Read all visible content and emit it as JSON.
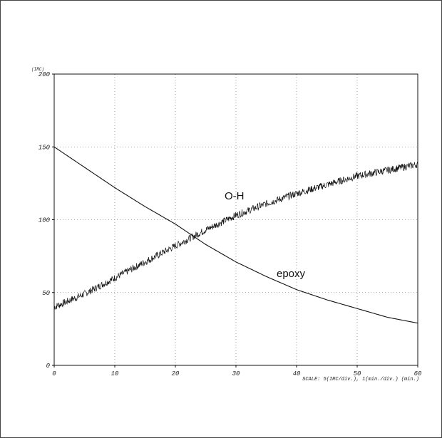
{
  "chart_data": {
    "type": "line",
    "y_unit": "(IRC)",
    "scale_text": "SCALE: 5(IRC/div.), 1(min./div.) (min.)",
    "xlim": [
      0,
      60
    ],
    "ylim": [
      0,
      200
    ],
    "x_ticks": [
      0,
      10,
      20,
      30,
      40,
      50,
      60
    ],
    "y_ticks": [
      0,
      50,
      100,
      150,
      200
    ],
    "grid": true,
    "series": [
      {
        "name": "O-H",
        "noisy": true,
        "x": [
          0,
          5,
          10,
          15,
          20,
          25,
          30,
          35,
          40,
          45,
          50,
          55,
          60
        ],
        "y": [
          40,
          49,
          60,
          71,
          82,
          93,
          103,
          111,
          118,
          124,
          130,
          134,
          138
        ]
      },
      {
        "name": "epoxy",
        "noisy": false,
        "x": [
          0,
          5,
          10,
          15,
          20,
          25,
          30,
          35,
          40,
          45,
          50,
          55,
          60
        ],
        "y": [
          150,
          136,
          122,
          109,
          97,
          83,
          71,
          61,
          52,
          45,
          39,
          33,
          29
        ]
      }
    ]
  }
}
